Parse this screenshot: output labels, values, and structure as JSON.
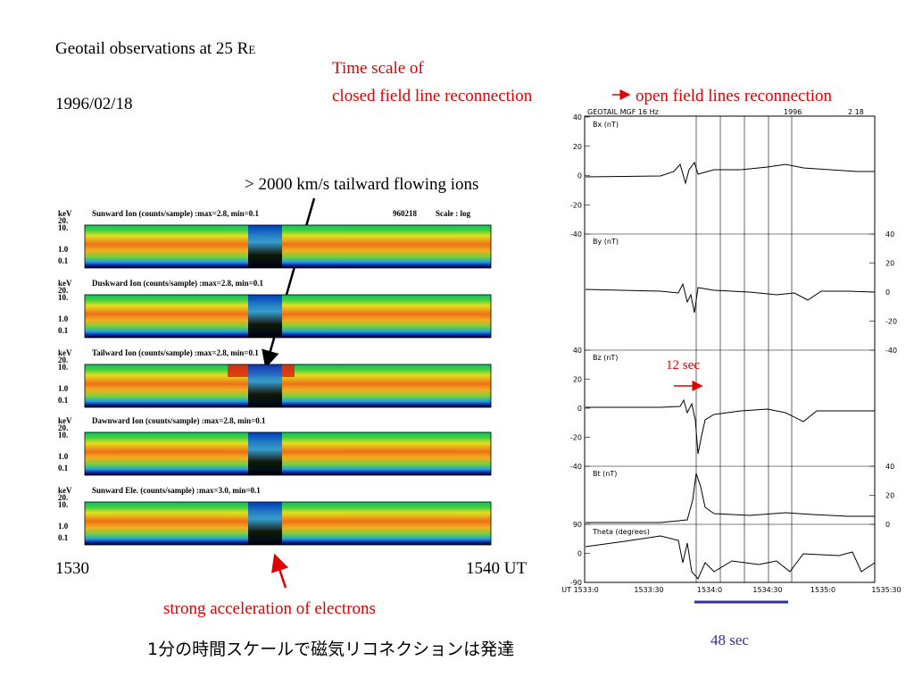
{
  "slide": {
    "title": "Geotail observations at 25 R",
    "title_sub": "E",
    "date": "1996/02/18",
    "timescale_note": [
      "Time scale of",
      "closed field line reconnection",
      "open field lines reconnection"
    ],
    "ion_note": "> 2000 km/s tailward flowing ions",
    "electron_note": "strong acceleration of electrons",
    "japanese_note": "1分の時間スケールで磁気リコネクションは発達",
    "spectrogram": {
      "unit": "keV",
      "energy_ticks": [
        "20.",
        "10.",
        "1.0",
        "0.1"
      ],
      "panels": [
        {
          "label": "Sunward Ion  (counts/sample) :max=2.8, min=0.1",
          "extra": [
            "960218",
            "Scale : log"
          ]
        },
        {
          "label": "Duskward Ion  (counts/sample) :max=2.8, min=0.1"
        },
        {
          "label": "Tailward Ion  (counts/sample) :max=2.8, min=0.1"
        },
        {
          "label": "Dawnward Ion  (counts/sample) :max=2.8, min=0.1"
        },
        {
          "label": "Sunward Ele.  (counts/sample) :max=3.0, min=0.1"
        }
      ],
      "x_start": "1530",
      "x_end": "1540 UT"
    },
    "magnetometer": {
      "header": [
        "GEOTAIL  MGF   16 Hz",
        "1996",
        "2   18"
      ],
      "panels": [
        {
          "label": "Bx (nT)",
          "side": "left",
          "ticks": [
            "40",
            "20",
            "0",
            "-20",
            "-40"
          ]
        },
        {
          "label": "By (nT)",
          "side": "right",
          "ticks": [
            "40",
            "20",
            "0",
            "-20",
            "-40"
          ]
        },
        {
          "label": "Bz (nT)",
          "side": "left",
          "ticks": [
            "40",
            "20",
            "0",
            "-20",
            "-40"
          ]
        },
        {
          "label": "Bt (nT)",
          "side": "right",
          "ticks": [
            "40",
            "20",
            "0"
          ]
        },
        {
          "label": "Theta  (degrees)",
          "side": "left",
          "ticks": [
            "90",
            "0",
            "-90"
          ]
        }
      ],
      "x_ticks": [
        "UT  1533:0",
        "1533:30",
        "1534:0",
        "1534:30",
        "1535:0",
        "1535:30"
      ],
      "note_12": "12 sec",
      "note_48": "48 sec"
    }
  }
}
